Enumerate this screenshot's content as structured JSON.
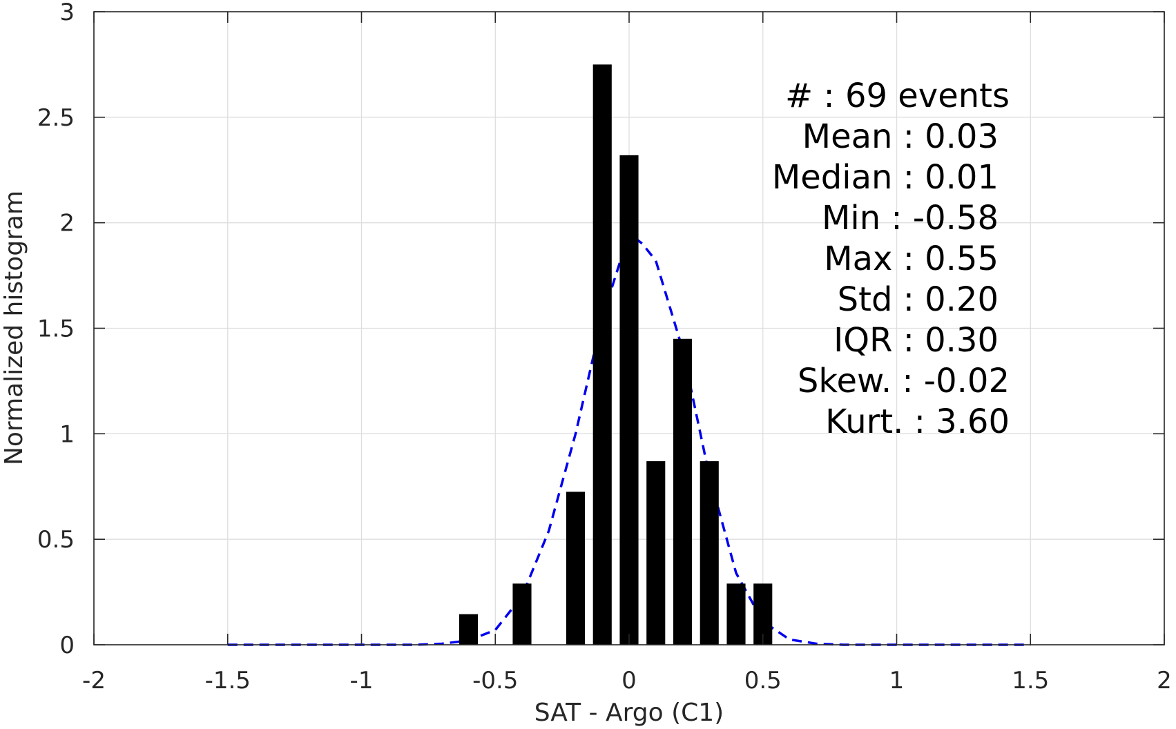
{
  "chart_data": {
    "type": "bar",
    "xlabel": "SAT - Argo (C1)",
    "ylabel": "Normalized histogram",
    "xlim": [
      -2,
      2
    ],
    "ylim": [
      0,
      3
    ],
    "xticks": [
      -2,
      -1.5,
      -1,
      -0.5,
      0,
      0.5,
      1,
      1.5,
      2
    ],
    "xtick_labels": [
      "-2",
      "-1.5",
      "-1",
      "-0.5",
      "0",
      "0.5",
      "1",
      "1.5",
      "2"
    ],
    "yticks": [
      0,
      0.5,
      1,
      1.5,
      2,
      2.5,
      3
    ],
    "ytick_labels": [
      "0",
      "0.5",
      "1",
      "1.5",
      "2",
      "2.5",
      "3"
    ],
    "grid": true,
    "bar_width": 0.07,
    "bars": {
      "x": [
        -0.6,
        -0.4,
        -0.2,
        -0.1,
        0.0,
        0.1,
        0.2,
        0.3,
        0.4,
        0.5
      ],
      "values": [
        0.145,
        0.29,
        0.725,
        2.75,
        2.32,
        0.87,
        1.45,
        0.87,
        0.29,
        0.29
      ],
      "color": "#000000"
    },
    "fit_curve": {
      "style": "dashed",
      "color": "#0000ee",
      "x": [
        -1.5,
        -1.2,
        -1.0,
        -0.8,
        -0.7,
        -0.6,
        -0.5,
        -0.4,
        -0.3,
        -0.2,
        -0.1,
        0.0,
        0.05,
        0.1,
        0.2,
        0.3,
        0.4,
        0.5,
        0.6,
        0.7,
        0.8,
        1.0,
        1.2,
        1.5
      ],
      "y": [
        0.0,
        0.0,
        0.0,
        0.0,
        0.005,
        0.02,
        0.07,
        0.23,
        0.54,
        1.0,
        1.55,
        1.95,
        1.9,
        1.82,
        1.4,
        0.8,
        0.34,
        0.11,
        0.025,
        0.005,
        0.0,
        0.0,
        0.0,
        0.0
      ]
    },
    "annotation": {
      "lines": [
        "#  : 69 events",
        "Mean : 0.03",
        "Median : 0.01",
        "Min : -0.58",
        "Max : 0.55",
        "Std : 0.20",
        "IQR : 0.30",
        "Skew. : -0.02",
        "Kurt. : 3.60"
      ]
    }
  }
}
